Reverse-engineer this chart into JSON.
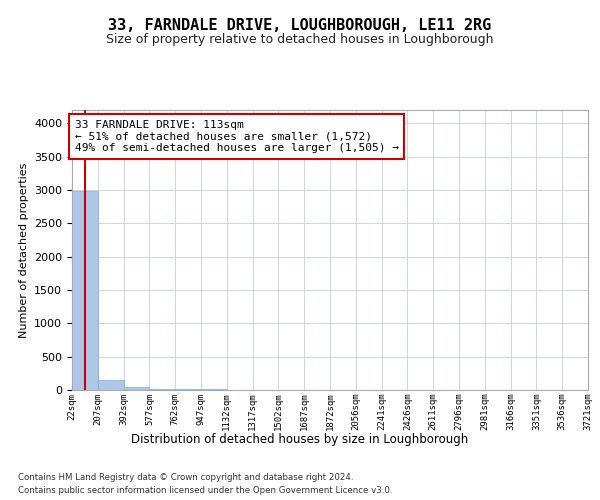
{
  "title": "33, FARNDALE DRIVE, LOUGHBOROUGH, LE11 2RG",
  "subtitle": "Size of property relative to detached houses in Loughborough",
  "xlabel": "Distribution of detached houses by size in Loughborough",
  "ylabel": "Number of detached properties",
  "footnote1": "Contains HM Land Registry data © Crown copyright and database right 2024.",
  "footnote2": "Contains public sector information licensed under the Open Government Licence v3.0.",
  "annotation_line1": "33 FARNDALE DRIVE: 113sqm",
  "annotation_line2": "← 51% of detached houses are smaller (1,572)",
  "annotation_line3": "49% of semi-detached houses are larger (1,505) →",
  "property_size": 113,
  "bar_edges": [
    22,
    207,
    392,
    577,
    762,
    947,
    1132,
    1317,
    1502,
    1687,
    1872,
    2056,
    2241,
    2426,
    2611,
    2796,
    2981,
    3166,
    3351,
    3536,
    3721
  ],
  "bar_heights": [
    2980,
    155,
    40,
    18,
    12,
    8,
    6,
    5,
    5,
    4,
    4,
    3,
    3,
    3,
    2,
    2,
    2,
    2,
    2,
    1
  ],
  "bar_color": "#aec6e8",
  "bar_edge_color": "#7ab0d4",
  "vline_color": "#cc0000",
  "annotation_box_edge_color": "#cc0000",
  "background_color": "#ffffff",
  "grid_color": "#c8d4e8",
  "ylim": [
    0,
    4200
  ],
  "yticks": [
    0,
    500,
    1000,
    1500,
    2000,
    2500,
    3000,
    3500,
    4000
  ],
  "title_fontsize": 11,
  "subtitle_fontsize": 9,
  "tick_labels": [
    "22sqm",
    "207sqm",
    "392sqm",
    "577sqm",
    "762sqm",
    "947sqm",
    "1132sqm",
    "1317sqm",
    "1502sqm",
    "1687sqm",
    "1872sqm",
    "2056sqm",
    "2241sqm",
    "2426sqm",
    "2611sqm",
    "2796sqm",
    "2981sqm",
    "3166sqm",
    "3351sqm",
    "3536sqm",
    "3721sqm"
  ]
}
